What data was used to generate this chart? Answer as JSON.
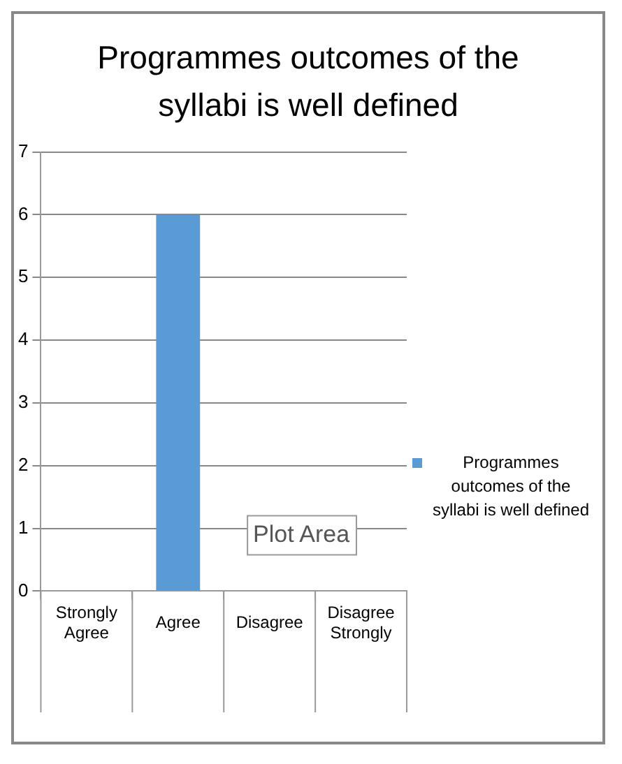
{
  "chart_data": {
    "type": "bar",
    "title": "Programmes outcomes of the syllabi is well defined",
    "categories": [
      "Strongly Agree",
      "Agree",
      "Disagree",
      "Disagree Strongly"
    ],
    "series": [
      {
        "name": "Programmes outcomes of the syllabi is well defined",
        "color": "#5b9bd5",
        "values": [
          0,
          6,
          0,
          0
        ]
      }
    ],
    "ylim": [
      0,
      7
    ],
    "yticks": [
      0,
      1,
      2,
      3,
      4,
      5,
      6,
      7
    ],
    "grid": "y",
    "legend": "right",
    "annotations": [
      "Plot Area"
    ]
  }
}
